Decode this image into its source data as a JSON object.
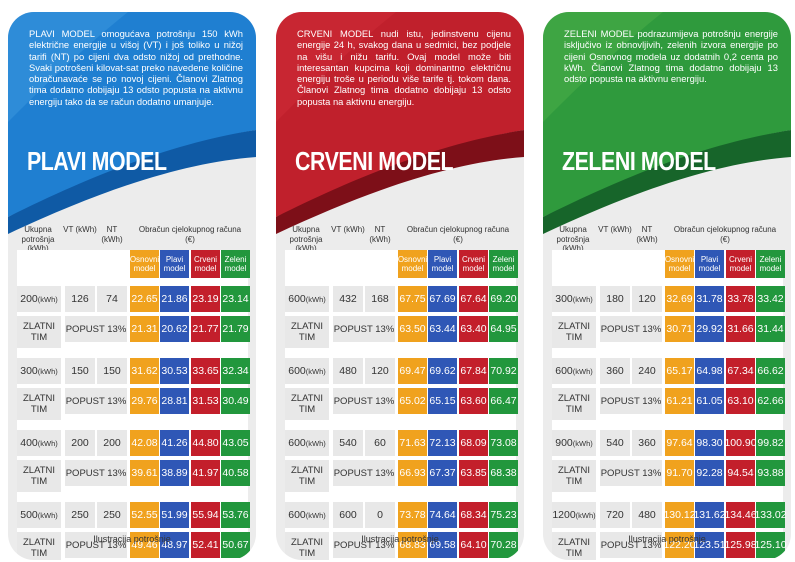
{
  "colors": {
    "orange": "#f0a21e",
    "blue": "#2f57b6",
    "red": "#c31f2b",
    "green": "#22973d"
  },
  "common": {
    "headers": {
      "ukupna": "Ukupna potrošnja (kWh)",
      "vt": "VT (kWh)",
      "nt": "NT (kWh)",
      "obracun": "Obračun cjelokupnog računa (€)"
    },
    "model_labels": [
      "Osnovni model",
      "Plavi model",
      "Crveni model",
      "Zeleni model"
    ],
    "zlatni_tim": "ZLATNI TIM",
    "popust": "POPUST 13%",
    "footer": "Ilustracija potrošnje",
    "kwh_unit": "(kWh)"
  },
  "cards": [
    {
      "id": "plavi",
      "title": "PLAVI MODEL",
      "description": "PLAVI MODEL omogućava potrošnju 150 kWh električne energije u višoj (VT) i još toliko u nižoj tarifi (NT) po cijeni dva odsto nižoj od prethodne. Svaki potrošeni kilovat-sat preko navedene količine obračunavaće se po novoj cijeni. Članovi Zlatnog tima dodatno dobijaju 13 odsto popusta na aktivnu energiju tako da se račun dodatno umanjuje.",
      "groups": [
        {
          "total": "200",
          "vt": "126",
          "nt": "74",
          "values": [
            "22.65",
            "21.86",
            "23.19",
            "23.14"
          ],
          "discount": [
            "21.31",
            "20.62",
            "21.77",
            "21.79"
          ]
        },
        {
          "total": "300",
          "vt": "150",
          "nt": "150",
          "values": [
            "31.62",
            "30.53",
            "33.65",
            "32.34"
          ],
          "discount": [
            "29.76",
            "28.81",
            "31.53",
            "30.49"
          ]
        },
        {
          "total": "400",
          "vt": "200",
          "nt": "200",
          "values": [
            "42.08",
            "41.26",
            "44.80",
            "43.05"
          ],
          "discount": [
            "39.61",
            "38.89",
            "41.97",
            "40.58"
          ]
        },
        {
          "total": "500",
          "vt": "250",
          "nt": "250",
          "values": [
            "52.55",
            "51.99",
            "55.94",
            "53.76"
          ],
          "discount": [
            "49.46",
            "48.97",
            "52.41",
            "50.67"
          ]
        }
      ]
    },
    {
      "id": "crveni",
      "title": "CRVENI MODEL",
      "description": "CRVENI MODEL nudi istu, jedinstvenu cijenu energije 24 h, svakog dana u sedmici, bez podjele na višu i nižu tarifu. Ovaj model može biti interesantan kupcima koji dominantno električnu energiju troše u periodu više tarife tj. tokom dana. Članovi Zlatnog tima dodatno dobijaju 13 odsto popusta na aktivnu energiju.",
      "groups": [
        {
          "total": "600",
          "vt": "432",
          "nt": "168",
          "values": [
            "67.75",
            "67.69",
            "67.64",
            "69.20"
          ],
          "discount": [
            "63.50",
            "63.44",
            "63.40",
            "64.95"
          ]
        },
        {
          "total": "600",
          "vt": "480",
          "nt": "120",
          "values": [
            "69.47",
            "69.62",
            "67.84",
            "70.92"
          ],
          "discount": [
            "65.02",
            "65.15",
            "63.60",
            "66.47"
          ]
        },
        {
          "total": "600",
          "vt": "540",
          "nt": "60",
          "values": [
            "71.63",
            "72.13",
            "68.09",
            "73.08"
          ],
          "discount": [
            "66.93",
            "67.37",
            "63.85",
            "68.38"
          ]
        },
        {
          "total": "600",
          "vt": "600",
          "nt": "0",
          "values": [
            "73.78",
            "74.64",
            "68.34",
            "75.23"
          ],
          "discount": [
            "68.83",
            "69.58",
            "64.10",
            "70.28"
          ]
        }
      ]
    },
    {
      "id": "zeleni",
      "title": "ZELENI MODEL",
      "description": "ZELENI MODEL podrazumijeva potrošnju energije isključivo iz obnovljivih, zelenih izvora energije po cijeni Osnovnog modela uz dodatnih 0,2 centa po kWh. Članovi Zlatnog tima dodatno dobijaju 13 odsto popusta na aktivnu energiju.",
      "groups": [
        {
          "total": "300",
          "vt": "180",
          "nt": "120",
          "values": [
            "32.69",
            "31.78",
            "33.78",
            "33.42"
          ],
          "discount": [
            "30.71",
            "29.92",
            "31.66",
            "31.44"
          ]
        },
        {
          "total": "600",
          "vt": "360",
          "nt": "240",
          "values": [
            "65.17",
            "64.98",
            "67.34",
            "66.62"
          ],
          "discount": [
            "61.21",
            "61.05",
            "63.10",
            "62.66"
          ]
        },
        {
          "total": "900",
          "vt": "540",
          "nt": "360",
          "values": [
            "97.64",
            "98.30",
            "100.90",
            "99.82"
          ],
          "discount": [
            "91.70",
            "92.28",
            "94.54",
            "93.88"
          ]
        },
        {
          "total": "1200",
          "vt": "720",
          "nt": "480",
          "values": [
            "130.12",
            "131.62",
            "134.46",
            "133.02"
          ],
          "discount": [
            "122.20",
            "123.51",
            "125.98",
            "125.10"
          ]
        }
      ]
    }
  ]
}
